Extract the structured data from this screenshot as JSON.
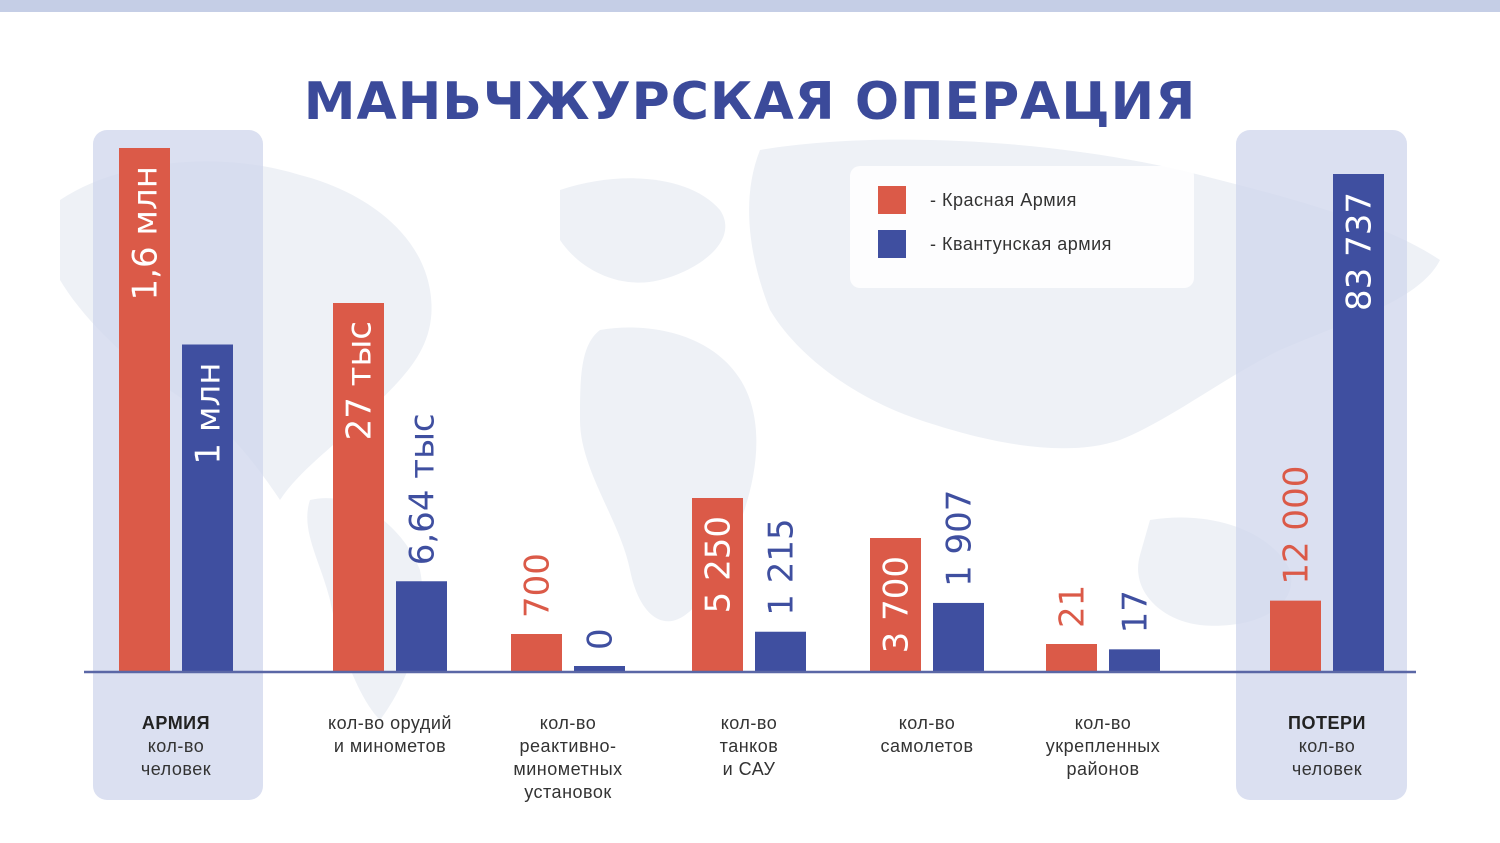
{
  "title": "МАНЬЧЖУРСКАЯ ОПЕРАЦИЯ",
  "legend": [
    {
      "label": "- Красная Армия",
      "color": "#db5a48"
    },
    {
      "label": "- Квантунская армия",
      "color": "#3f4fa0"
    }
  ],
  "colors": {
    "red": "#db5a48",
    "blue": "#3f4fa0",
    "axis": "#5a67a6"
  },
  "chart_data": {
    "type": "bar",
    "title": "МАНЬЧЖУРСКАЯ ОПЕРАЦИЯ",
    "xlabel": "",
    "ylabel": "",
    "grid": false,
    "legend_position": "top-right",
    "note": "each category group is drawn on its own scale; bar heights are proportional only within a group",
    "categories": [
      {
        "bold": "АРМИЯ",
        "lines": [
          "кол-во",
          "человек"
        ]
      },
      {
        "bold": "",
        "lines": [
          "кол-во  орудий",
          "и минометов"
        ]
      },
      {
        "bold": "",
        "lines": [
          "кол-во",
          "реактивно-",
          "минометных",
          "установок"
        ]
      },
      {
        "bold": "",
        "lines": [
          "кол-во",
          "танков",
          "и САУ"
        ]
      },
      {
        "bold": "",
        "lines": [
          "кол-во",
          "самолетов"
        ]
      },
      {
        "bold": "",
        "lines": [
          "кол-во",
          "укрепленных",
          "районов"
        ]
      },
      {
        "bold": "ПОТЕРИ",
        "lines": [
          "кол-во",
          "человек"
        ]
      }
    ],
    "series": [
      {
        "name": "Красная Армия",
        "color": "#db5a48",
        "values": [
          1600000,
          27000,
          700,
          5250,
          3700,
          21,
          12000
        ],
        "labels": [
          "1,6 млн",
          "27 тыс",
          "700",
          "5 250",
          "3 700",
          "21",
          "12 000"
        ]
      },
      {
        "name": "Квантунская армия",
        "color": "#3f4fa0",
        "values": [
          1000000,
          6640,
          0,
          1215,
          1907,
          17,
          83737
        ],
        "labels": [
          "1 млн",
          "6,64 тыс",
          "0",
          "1 215",
          "1 907",
          "17",
          "83 737"
        ]
      }
    ]
  }
}
